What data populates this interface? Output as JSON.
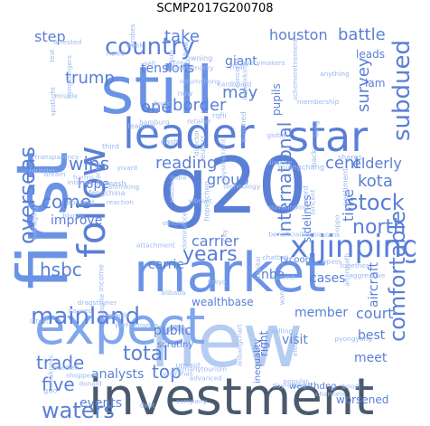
{
  "chart_data": {
    "type": "wordcloud",
    "title": "SCMP2017G200708",
    "palette": [
      "#5a7fd6",
      "#6a93e6",
      "#7fa6ee",
      "#9ab8f0",
      "#b6cdf3",
      "#4466b8",
      "#506070"
    ],
    "words": [
      {
        "text": "new",
        "weight": 100,
        "color": "#b6cdf3"
      },
      {
        "text": "g20",
        "weight": 98,
        "color": "#5a7fd6"
      },
      {
        "text": "still",
        "weight": 90,
        "color": "#6a93e6"
      },
      {
        "text": "first",
        "weight": 86,
        "color": "#6a93e6"
      },
      {
        "text": "market",
        "weight": 80,
        "color": "#6a93e6"
      },
      {
        "text": "investment",
        "weight": 74,
        "color": "#4a5a6e"
      },
      {
        "text": "expect",
        "weight": 66,
        "color": "#7fa6ee"
      },
      {
        "text": "leader",
        "weight": 58,
        "color": "#5a7fd6"
      },
      {
        "text": "star",
        "weight": 58,
        "color": "#5a7fd6"
      },
      {
        "text": "follow",
        "weight": 54,
        "color": "#5a7fd6"
      },
      {
        "text": "xi",
        "weight": 40,
        "color": "#5a7fd6"
      },
      {
        "text": "jinping",
        "weight": 40,
        "color": "#5a7fd6"
      },
      {
        "text": "subdued",
        "weight": 30,
        "color": "#5a7fd6"
      },
      {
        "text": "country",
        "weight": 30,
        "color": "#5a7fd6"
      },
      {
        "text": "mainland",
        "weight": 30,
        "color": "#5a7fd6"
      },
      {
        "text": "overseas",
        "weight": 30,
        "color": "#5a7fd6"
      },
      {
        "text": "comfortable",
        "weight": 28,
        "color": "#5a7fd6"
      },
      {
        "text": "stock",
        "weight": 28,
        "color": "#5a7fd6"
      },
      {
        "text": "north",
        "weight": 26,
        "color": "#5a7fd6"
      },
      {
        "text": "international",
        "weight": 26,
        "color": "#5a7fd6"
      },
      {
        "text": "years",
        "weight": 26,
        "color": "#5a7fd6"
      },
      {
        "text": "waters",
        "weight": 26,
        "color": "#5a7fd6"
      },
      {
        "text": "total",
        "weight": 24,
        "color": "#5a7fd6"
      },
      {
        "text": "trade",
        "weight": 24,
        "color": "#5a7fd6"
      },
      {
        "text": "five",
        "weight": 24,
        "color": "#5a7fd6"
      },
      {
        "text": "top",
        "weight": 24,
        "color": "#5a7fd6"
      },
      {
        "text": "wins",
        "weight": 22,
        "color": "#5a7fd6"
      },
      {
        "text": "hsbc",
        "weight": 22,
        "color": "#5a7fd6"
      },
      {
        "text": "come",
        "weight": 22,
        "color": "#5a7fd6"
      },
      {
        "text": "reading",
        "weight": 20,
        "color": "#5a7fd6"
      },
      {
        "text": "border",
        "weight": 20,
        "color": "#5a7fd6"
      },
      {
        "text": "one",
        "weight": 20,
        "color": "#5a7fd6"
      },
      {
        "text": "survey",
        "weight": 20,
        "color": "#5a7fd6"
      },
      {
        "text": "battle",
        "weight": 20,
        "color": "#5a7fd6"
      },
      {
        "text": "houston",
        "weight": 18,
        "color": "#5a7fd6"
      },
      {
        "text": "take",
        "weight": 18,
        "color": "#5a7fd6"
      },
      {
        "text": "step",
        "weight": 16,
        "color": "#5a7fd6"
      },
      {
        "text": "trump",
        "weight": 18,
        "color": "#5a7fd6"
      },
      {
        "text": "kota",
        "weight": 18,
        "color": "#5a7fd6"
      },
      {
        "text": "cent",
        "weight": 18,
        "color": "#5a7fd6"
      },
      {
        "text": "elderly",
        "weight": 16,
        "color": "#5a7fd6"
      },
      {
        "text": "time",
        "weight": 18,
        "color": "#5a7fd6"
      },
      {
        "text": "carrier",
        "weight": 18,
        "color": "#5a7fd6"
      },
      {
        "text": "carrie",
        "weight": 16,
        "color": "#5a7fd6"
      },
      {
        "text": "group",
        "weight": 16,
        "color": "#5a7fd6"
      },
      {
        "text": "court",
        "weight": 16,
        "color": "#5a7fd6"
      },
      {
        "text": "visit",
        "weight": 16,
        "color": "#5a7fd6"
      },
      {
        "text": "public",
        "weight": 16,
        "color": "#5a7fd6"
      },
      {
        "text": "best",
        "weight": 16,
        "color": "#5a7fd6"
      },
      {
        "text": "meet",
        "weight": 16,
        "color": "#5a7fd6"
      },
      {
        "text": "member",
        "weight": 16,
        "color": "#5a7fd6"
      },
      {
        "text": "wealth",
        "weight": 14,
        "color": "#5a7fd6"
      },
      {
        "text": "base",
        "weight": 14,
        "color": "#5a7fd6"
      },
      {
        "text": "analysts",
        "weight": 16,
        "color": "#5a7fd6"
      },
      {
        "text": "events",
        "weight": 16,
        "color": "#5a7fd6"
      },
      {
        "text": "improve",
        "weight": 14,
        "color": "#5a7fd6"
      },
      {
        "text": "hope",
        "weight": 16,
        "color": "#5a7fd6"
      },
      {
        "text": "cases",
        "weight": 14,
        "color": "#5a7fd6"
      },
      {
        "text": "nba",
        "weight": 16,
        "color": "#5a7fd6"
      },
      {
        "text": "right",
        "weight": 14,
        "color": "#5a7fd6"
      },
      {
        "text": "sidelines",
        "weight": 14,
        "color": "#5a7fd6"
      },
      {
        "text": "giant",
        "weight": 14,
        "color": "#5a7fd6"
      },
      {
        "text": "may",
        "weight": 18,
        "color": "#5a7fd6"
      },
      {
        "text": "pupils",
        "weight": 14,
        "color": "#5a7fd6"
      },
      {
        "text": "tensions",
        "weight": 14,
        "color": "#5a7fd6"
      },
      {
        "text": "leads",
        "weight": 14,
        "color": "#5a7fd6"
      },
      {
        "text": "lam",
        "weight": 14,
        "color": "#5a7fd6"
      },
      {
        "text": "aircraft",
        "weight": 14,
        "color": "#5a7fd6"
      },
      {
        "text": "worsened",
        "weight": 14,
        "color": "#5a7fd6"
      },
      {
        "text": "tycoons",
        "weight": 12,
        "color": "#5a7fd6"
      },
      {
        "text": "scrutiny",
        "weight": 12,
        "color": "#5a7fd6"
      },
      {
        "text": "inequality",
        "weight": 12,
        "color": "#5a7fd6"
      },
      {
        "text": "wealthdng",
        "weight": 12,
        "color": "#5a7fd6"
      },
      {
        "text": "dominance",
        "weight": 6,
        "color": "#9ab8f0"
      },
      {
        "text": "reaction",
        "weight": 6,
        "color": "#9ab8f0"
      },
      {
        "text": "burden",
        "weight": 8,
        "color": "#9ab8f0"
      },
      {
        "text": "dash",
        "weight": 8,
        "color": "#9ab8f0"
      },
      {
        "text": "policymakers",
        "weight": 6,
        "color": "#9ab8f0"
      },
      {
        "text": "income",
        "weight": 8,
        "color": "#9ab8f0"
      },
      {
        "text": "hopeschen",
        "weight": 8,
        "color": "#9ab8f0"
      },
      {
        "text": "guo",
        "weight": 8,
        "color": "#9ab8f0"
      },
      {
        "text": "abound",
        "weight": 8,
        "color": "#9ab8f0"
      },
      {
        "text": "fengchina",
        "weight": 8,
        "color": "#9ab8f0"
      },
      {
        "text": "widened",
        "weight": 8,
        "color": "#9ab8f0"
      },
      {
        "text": "sentiment",
        "weight": 8,
        "color": "#9ab8f0"
      },
      {
        "text": "reuters",
        "weight": 8,
        "color": "#9ab8f0"
      },
      {
        "text": "guangchang",
        "weight": 8,
        "color": "#9ab8f0"
      },
      {
        "text": "weakness",
        "weight": 6,
        "color": "#9ab8f0"
      },
      {
        "text": "tencent",
        "weight": 6,
        "color": "#9ab8f0"
      },
      {
        "text": "technology",
        "weight": 6,
        "color": "#9ab8f0"
      },
      {
        "text": "concerns",
        "weight": 6,
        "color": "#9ab8f0"
      },
      {
        "text": "fosun",
        "weight": 8,
        "color": "#9ab8f0"
      },
      {
        "text": "alibaba",
        "weight": 6,
        "color": "#9ab8f0"
      },
      {
        "text": "shares",
        "weight": 8,
        "color": "#9ab8f0"
      },
      {
        "text": "vibrant",
        "weight": 6,
        "color": "#9ab8f0"
      },
      {
        "text": "xiaohe",
        "weight": 6,
        "color": "#9ab8f0"
      },
      {
        "text": "despite",
        "weight": 6,
        "color": "#9ab8f0"
      },
      {
        "text": "performance",
        "weight": 6,
        "color": "#9ab8f0"
      },
      {
        "text": "boost",
        "weight": 6,
        "color": "#9ab8f0"
      },
      {
        "text": "summit",
        "weight": 6,
        "color": "#9ab8f0"
      },
      {
        "text": "transparency",
        "weight": 6,
        "color": "#9ab8f0"
      },
      {
        "text": "unleash",
        "weight": 8,
        "color": "#9ab8f0"
      },
      {
        "text": "global",
        "weight": 6,
        "color": "#9ab8f0"
      },
      {
        "text": "founder",
        "weight": 6,
        "color": "#9ab8f0"
      },
      {
        "text": "easingmurky",
        "weight": 6,
        "color": "#9ab8f0"
      },
      {
        "text": "unsaid",
        "weight": 8,
        "color": "#9ab8f0"
      },
      {
        "text": "returnshong",
        "weight": 6,
        "color": "#9ab8f0"
      },
      {
        "text": "kong",
        "weight": 6,
        "color": "#9ab8f0"
      },
      {
        "text": "dragstruner",
        "weight": 6,
        "color": "#9ab8f0"
      },
      {
        "text": "anbangchart",
        "weight": 6,
        "color": "#9ab8f0"
      },
      {
        "text": "schemeretirement",
        "weight": 6,
        "color": "#9ab8f0"
      },
      {
        "text": "arrested",
        "weight": 6,
        "color": "#9ab8f0"
      },
      {
        "text": "electric",
        "weight": 6,
        "color": "#9ab8f0"
      },
      {
        "text": "hna",
        "weight": 8,
        "color": "#9ab8f0"
      },
      {
        "text": "owning",
        "weight": 8,
        "color": "#9ab8f0"
      },
      {
        "text": "third",
        "weight": 8,
        "color": "#9ab8f0"
      },
      {
        "text": "hongkongers",
        "weight": 6,
        "color": "#9ab8f0"
      },
      {
        "text": "rival",
        "weight": 6,
        "color": "#9ab8f0"
      },
      {
        "text": "blundy",
        "weight": 6,
        "color": "#9ab8f0"
      },
      {
        "text": "latest",
        "weight": 6,
        "color": "#9ab8f0"
      },
      {
        "text": "dispute",
        "weight": 6,
        "color": "#9ab8f0"
      },
      {
        "text": "capital",
        "weight": 6,
        "color": "#9ab8f0"
      },
      {
        "text": "sell",
        "weight": 6,
        "color": "#9ab8f0"
      },
      {
        "text": "test",
        "weight": 6,
        "color": "#9ab8f0"
      },
      {
        "text": "week",
        "weight": 6,
        "color": "#9ab8f0"
      },
      {
        "text": "india",
        "weight": 6,
        "color": "#9ab8f0"
      },
      {
        "text": "plank",
        "weight": 6,
        "color": "#9ab8f0"
      },
      {
        "text": "shopper",
        "weight": 6,
        "color": "#9ab8f0"
      },
      {
        "text": "advanced",
        "weight": 6,
        "color": "#9ab8f0"
      },
      {
        "text": "company",
        "weight": 6,
        "color": "#9ab8f0"
      },
      {
        "text": "others",
        "weight": 6,
        "color": "#9ab8f0"
      },
      {
        "text": "popular",
        "weight": 6,
        "color": "#9ab8f0"
      },
      {
        "text": "aggressive",
        "weight": 6,
        "color": "#9ab8f0"
      },
      {
        "text": "threat",
        "weight": 6,
        "color": "#9ab8f0"
      },
      {
        "text": "tokyo",
        "weight": 6,
        "color": "#9ab8f0"
      },
      {
        "text": "selling",
        "weight": 6,
        "color": "#9ab8f0"
      },
      {
        "text": "germanytourism",
        "weight": 6,
        "color": "#9ab8f0"
      },
      {
        "text": "dream",
        "weight": 6,
        "color": "#9ab8f0"
      },
      {
        "text": "aftermath",
        "weight": 6,
        "color": "#9ab8f0"
      },
      {
        "text": "networking",
        "weight": 6,
        "color": "#9ab8f0"
      },
      {
        "text": "director",
        "weight": 6,
        "color": "#9ab8f0"
      },
      {
        "text": "oppo",
        "weight": 6,
        "color": "#9ab8f0"
      },
      {
        "text": "finds",
        "weight": 6,
        "color": "#9ab8f0"
      },
      {
        "text": "rewards",
        "weight": 6,
        "color": "#9ab8f0"
      },
      {
        "text": "apass",
        "weight": 6,
        "color": "#9ab8f0"
      },
      {
        "text": "membership",
        "weight": 6,
        "color": "#9ab8f0"
      },
      {
        "text": "yearshas",
        "weight": 6,
        "color": "#9ab8f0"
      },
      {
        "text": "missile",
        "weight": 6,
        "color": "#9ab8f0"
      },
      {
        "text": "shrinking",
        "weight": 6,
        "color": "#9ab8f0"
      },
      {
        "text": "probes",
        "weight": 6,
        "color": "#9ab8f0"
      },
      {
        "text": "surrounding",
        "weight": 6,
        "color": "#9ab8f0"
      },
      {
        "text": "anything",
        "weight": 6,
        "color": "#9ab8f0"
      },
      {
        "text": "wanda",
        "weight": 6,
        "color": "#9ab8f0"
      },
      {
        "text": "caused",
        "weight": 6,
        "color": "#9ab8f0"
      },
      {
        "text": "managing",
        "weight": 6,
        "color": "#9ab8f0"
      },
      {
        "text": "hamburg",
        "weight": 6,
        "color": "#9ab8f0"
      },
      {
        "text": "retailer",
        "weight": 6,
        "color": "#9ab8f0"
      },
      {
        "text": "channels",
        "weight": 6,
        "color": "#9ab8f0"
      },
      {
        "text": "pyongyang",
        "weight": 6,
        "color": "#9ab8f0"
      },
      {
        "text": "spotlight",
        "weight": 6,
        "color": "#9ab8f0"
      },
      {
        "text": "chatbot",
        "weight": 6,
        "color": "#9ab8f0"
      },
      {
        "text": "yivant",
        "weight": 6,
        "color": "#9ab8f0"
      },
      {
        "text": "donald",
        "weight": 6,
        "color": "#9ab8f0"
      },
      {
        "text": "wants",
        "weight": 6,
        "color": "#9ab8f0"
      },
      {
        "text": "cardboard",
        "weight": 6,
        "color": "#9ab8f0"
      },
      {
        "text": "together",
        "weight": 6,
        "color": "#9ab8f0"
      },
      {
        "text": "attachment",
        "weight": 6,
        "color": "#9ab8f0"
      },
      {
        "text": "intense",
        "weight": 6,
        "color": "#9ab8f0"
      },
      {
        "text": "beneficialifornia",
        "weight": 6,
        "color": "#9ab8f0"
      },
      {
        "text": "saysrestraint",
        "weight": 6,
        "color": "#9ab8f0"
      },
      {
        "text": "harms",
        "weight": 6,
        "color": "#9ab8f0"
      },
      {
        "text": "dayreview",
        "weight": 6,
        "color": "#9ab8f0"
      },
      {
        "text": "word",
        "weight": 8,
        "color": "#9ab8f0"
      },
      {
        "text": "back",
        "weight": 8,
        "color": "#9ab8f0"
      },
      {
        "text": "need",
        "weight": 8,
        "color": "#9ab8f0"
      },
      {
        "text": "debt",
        "weight": 6,
        "color": "#9ab8f0"
      },
      {
        "text": "city",
        "weight": 6,
        "color": "#9ab8f0"
      },
      {
        "text": "now",
        "weight": 8,
        "color": "#9ab8f0"
      },
      {
        "text": "leading",
        "weight": 8,
        "color": "#9ab8f0"
      },
      {
        "text": "rqfii",
        "weight": 8,
        "color": "#9ab8f0"
      }
    ]
  }
}
